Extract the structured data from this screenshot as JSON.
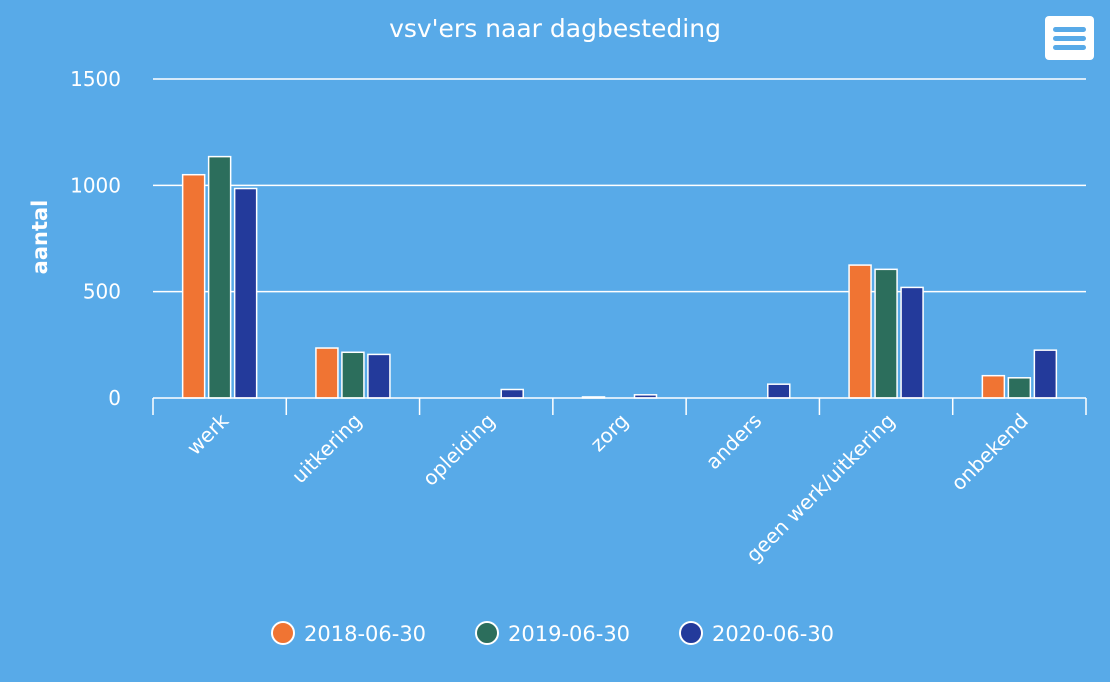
{
  "chart_data": {
    "type": "bar",
    "title": "vsv'ers naar dagbesteding",
    "xlabel": "",
    "ylabel": "aantal",
    "ylim": [
      0,
      1500
    ],
    "yticks": [
      0,
      500,
      1000,
      1500
    ],
    "categories": [
      "werk",
      "uitkering",
      "opleiding",
      "zorg",
      "anders",
      "geen werk/uitkering",
      "onbekend"
    ],
    "series": [
      {
        "name": "2018-06-30",
        "color": "#f07433",
        "values": [
          1050,
          235,
          0,
          5,
          0,
          625,
          105
        ]
      },
      {
        "name": "2019-06-30",
        "color": "#2c6e5c",
        "values": [
          1135,
          215,
          0,
          0,
          0,
          605,
          95
        ]
      },
      {
        "name": "2020-06-30",
        "color": "#233a9b",
        "values": [
          985,
          205,
          40,
          15,
          65,
          520,
          225
        ]
      }
    ],
    "legend_position": "bottom",
    "grid": true
  },
  "menu": {
    "icon": "hamburger-menu-icon"
  }
}
